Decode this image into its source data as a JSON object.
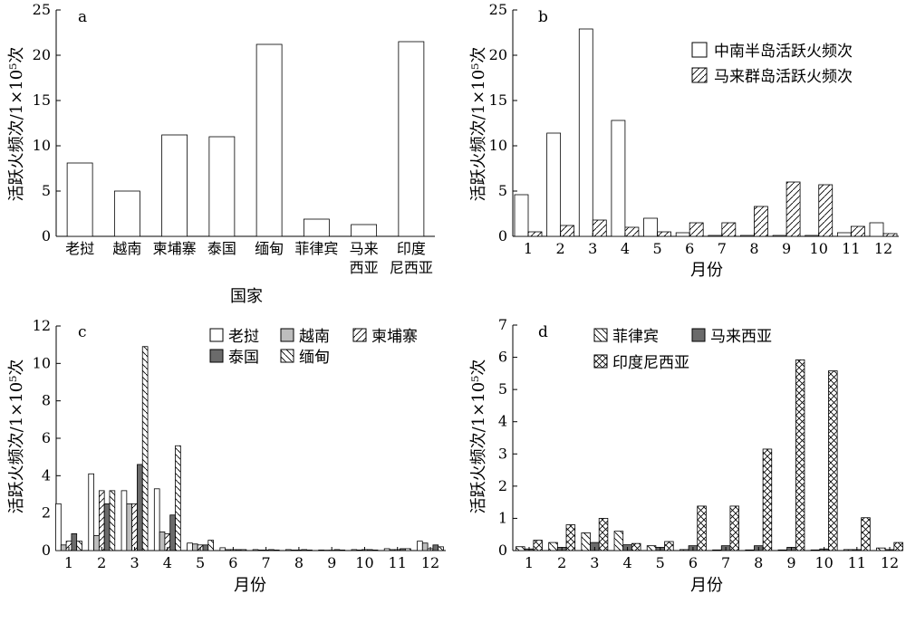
{
  "chart_data": [
    {
      "id": "a",
      "type": "bar",
      "panel_label": "a",
      "ylabel": "活跃火频次/1×10⁵次",
      "xlabel": "国家",
      "ylim": [
        0,
        25
      ],
      "yticks": [
        0,
        5,
        10,
        15,
        20,
        25
      ],
      "categories": [
        [
          "老挝"
        ],
        [
          "越南"
        ],
        [
          "柬埔寨"
        ],
        [
          "泰国"
        ],
        [
          "缅甸"
        ],
        [
          "菲律宾"
        ],
        [
          "马来",
          "西亚"
        ],
        [
          "印度",
          "尼西亚"
        ]
      ],
      "series": [
        {
          "values": [
            8.1,
            5.0,
            11.2,
            11.0,
            21.2,
            1.9,
            1.3,
            21.5
          ],
          "pattern": "none"
        }
      ],
      "legend": []
    },
    {
      "id": "b",
      "type": "bar",
      "panel_label": "b",
      "ylabel": "活跃火频次/1×10⁵次",
      "xlabel": "月份",
      "ylim": [
        0,
        25
      ],
      "yticks": [
        0,
        5,
        10,
        15,
        20,
        25
      ],
      "categories": [
        "1",
        "2",
        "3",
        "4",
        "5",
        "6",
        "7",
        "8",
        "9",
        "10",
        "11",
        "12"
      ],
      "series": [
        {
          "name": "中南半岛活跃火频次",
          "pattern": "none",
          "values": [
            4.6,
            11.4,
            22.9,
            12.8,
            2.0,
            0.4,
            0.1,
            0.1,
            0.1,
            0.1,
            0.4,
            1.5
          ]
        },
        {
          "name": "马来群岛活跃火频次",
          "pattern": "fslash",
          "values": [
            0.5,
            1.2,
            1.8,
            1.0,
            0.5,
            1.5,
            1.5,
            3.3,
            6.0,
            5.7,
            1.1,
            0.3
          ]
        }
      ],
      "legend": [
        "中南半岛活跃火频次",
        "马来群岛活跃火频次"
      ]
    },
    {
      "id": "c",
      "type": "bar",
      "panel_label": "c",
      "ylabel": "活跃火频次/1×10⁵次",
      "xlabel": "月份",
      "ylim": [
        0,
        12
      ],
      "yticks": [
        0,
        2,
        4,
        6,
        8,
        10,
        12
      ],
      "categories": [
        "1",
        "2",
        "3",
        "4",
        "5",
        "6",
        "7",
        "8",
        "9",
        "10",
        "11",
        "12"
      ],
      "series": [
        {
          "name": "老挝",
          "pattern": "none",
          "values": [
            2.5,
            4.1,
            3.2,
            3.3,
            0.4,
            0.15,
            0.05,
            0.05,
            0.03,
            0.05,
            0.1,
            0.5
          ]
        },
        {
          "name": "越南",
          "pattern": "gray",
          "values": [
            0.3,
            0.8,
            2.5,
            1.0,
            0.35,
            0.05,
            0.03,
            0.03,
            0.02,
            0.03,
            0.05,
            0.4
          ]
        },
        {
          "name": "柬埔寨",
          "pattern": "fslash",
          "values": [
            0.5,
            3.2,
            2.5,
            0.9,
            0.3,
            0.05,
            0.03,
            0.03,
            0.02,
            0.05,
            0.05,
            0.1
          ]
        },
        {
          "name": "泰国",
          "pattern": "dark",
          "values": [
            0.9,
            2.5,
            4.6,
            1.9,
            0.3,
            0.05,
            0.05,
            0.05,
            0.05,
            0.05,
            0.1,
            0.3
          ]
        },
        {
          "name": "缅甸",
          "pattern": "bslash",
          "values": [
            0.5,
            3.2,
            10.9,
            5.6,
            0.55,
            0.05,
            0.03,
            0.03,
            0.03,
            0.03,
            0.1,
            0.2
          ]
        }
      ],
      "legend": [
        "老挝",
        "越南",
        "柬埔寨",
        "泰国",
        "缅甸"
      ]
    },
    {
      "id": "d",
      "type": "bar",
      "panel_label": "d",
      "ylabel": "活跃火频次/1×10⁵次",
      "xlabel": "月份",
      "ylim": [
        0,
        7
      ],
      "yticks": [
        0,
        1,
        2,
        3,
        4,
        5,
        6,
        7
      ],
      "categories": [
        "1",
        "2",
        "3",
        "4",
        "5",
        "6",
        "7",
        "8",
        "9",
        "10",
        "11",
        "12"
      ],
      "series": [
        {
          "name": "菲律宾",
          "pattern": "bslash",
          "values": [
            0.12,
            0.25,
            0.55,
            0.6,
            0.15,
            0.03,
            0.02,
            0.02,
            0.02,
            0.02,
            0.03,
            0.08
          ]
        },
        {
          "name": "马来西亚",
          "pattern": "dark",
          "values": [
            0.05,
            0.1,
            0.25,
            0.18,
            0.1,
            0.15,
            0.15,
            0.15,
            0.1,
            0.05,
            0.03,
            0.03
          ]
        },
        {
          "name": "印度尼西亚",
          "pattern": "xhatch",
          "values": [
            0.32,
            0.8,
            1.0,
            0.22,
            0.28,
            1.38,
            1.38,
            3.15,
            5.92,
            5.58,
            1.02,
            0.25
          ]
        }
      ],
      "legend": [
        "菲律宾",
        "马来西亚",
        "印度尼西亚"
      ]
    }
  ]
}
